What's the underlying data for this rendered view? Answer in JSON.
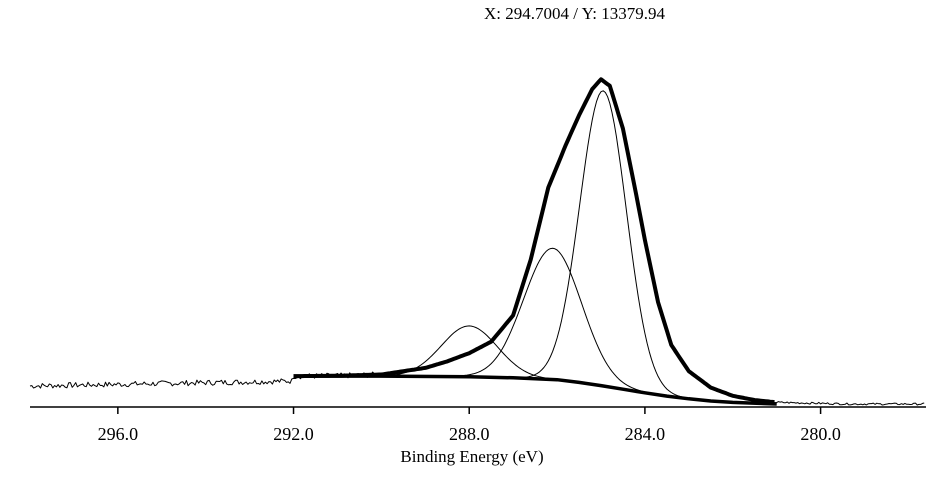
{
  "readout": {
    "label": "X: 294.7004 / Y: 13379.94",
    "x": 294.7004,
    "y": 13379.94
  },
  "chart_data": {
    "type": "line",
    "title": "",
    "xlabel": "Binding Energy (eV)",
    "ylabel": "",
    "x_reversed": true,
    "xlim": [
      298.0,
      277.6
    ],
    "ylim": [
      0,
      1.0
    ],
    "grid": false,
    "legend": "none",
    "xticks": [
      296.0,
      292.0,
      288.0,
      284.0,
      280.0
    ],
    "xtick_labels": [
      "296.0",
      "292.0",
      "288.0",
      "284.0",
      "280.0"
    ],
    "raw_spectrum": {
      "x_start": 298.0,
      "x_end": 277.6,
      "baseline_level": 0.07,
      "noise_amplitude": 0.006,
      "peak_max": 1.0,
      "peak_position": 285.0
    },
    "envelope": {
      "x": [
        292.0,
        291.0,
        290.0,
        289.0,
        288.5,
        288.0,
        287.5,
        287.0,
        286.6,
        286.2,
        285.8,
        285.5,
        285.2,
        285.0,
        284.8,
        284.5,
        284.2,
        284.0,
        283.7,
        283.4,
        283.0,
        282.5,
        282.0,
        281.5,
        281.0
      ],
      "y": [
        0.085,
        0.086,
        0.09,
        0.11,
        0.13,
        0.155,
        0.19,
        0.27,
        0.44,
        0.66,
        0.79,
        0.88,
        0.96,
        0.99,
        0.97,
        0.84,
        0.64,
        0.5,
        0.31,
        0.18,
        0.1,
        0.05,
        0.025,
        0.012,
        0.005
      ]
    },
    "background": {
      "x": [
        292.0,
        290.0,
        288.0,
        287.0,
        286.0,
        285.5,
        285.0,
        284.5,
        284.0,
        283.5,
        283.0,
        282.5,
        282.0,
        281.0
      ],
      "y": [
        0.085,
        0.085,
        0.083,
        0.08,
        0.074,
        0.066,
        0.056,
        0.045,
        0.034,
        0.024,
        0.016,
        0.009,
        0.005,
        0.0
      ]
    },
    "components": [
      {
        "center": 284.95,
        "height": 0.9,
        "fwhm": 1.25
      },
      {
        "center": 286.1,
        "height": 0.4,
        "fwhm": 1.55
      },
      {
        "center": 288.0,
        "height": 0.155,
        "fwhm": 1.5
      }
    ],
    "peaks_seen": [
      {
        "x": 285.0,
        "label": ""
      }
    ]
  }
}
